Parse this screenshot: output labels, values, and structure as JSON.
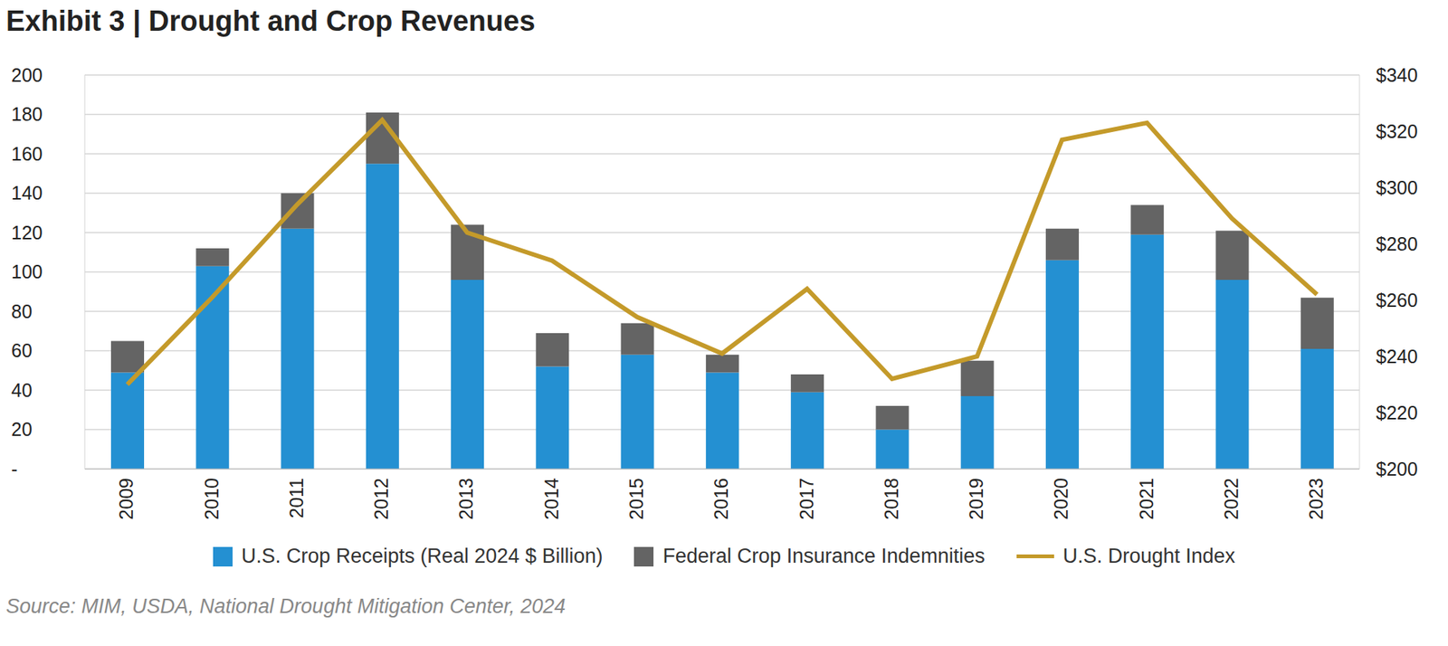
{
  "chart_data": {
    "type": "bar",
    "title": "Exhibit 3 | Drought and Crop Revenues",
    "source": "Source: MIM, USDA, National Drought Mitigation Center, 2024",
    "categories": [
      "2009",
      "2010",
      "2011",
      "2012",
      "2013",
      "2014",
      "2015",
      "2016",
      "2017",
      "2018",
      "2019",
      "2020",
      "2021",
      "2022",
      "2023"
    ],
    "series": [
      {
        "name": "U.S. Crop Receipts (Real 2024 $ Billion)",
        "type": "bar",
        "color": "#2490d2",
        "values": [
          49,
          103,
          122,
          155,
          96,
          52,
          58,
          49,
          39,
          20,
          37,
          106,
          119,
          96,
          61
        ]
      },
      {
        "name": "Federal Crop Insurance Indemnities",
        "type": "bar",
        "color": "#646464",
        "values": [
          16,
          9,
          18,
          26,
          28,
          17,
          16,
          9,
          9,
          12,
          18,
          16,
          15,
          25,
          26
        ]
      },
      {
        "name": "U.S. Drought Index",
        "type": "line",
        "axis": "y2",
        "color": "#c49a2a",
        "values": [
          230,
          261,
          294,
          324,
          284,
          274,
          254,
          241,
          264,
          232,
          240,
          317,
          323,
          289,
          262
        ]
      }
    ],
    "stacked": true,
    "ylim": [
      0,
      200
    ],
    "yticks": [
      {
        "value": 0,
        "label": "-"
      },
      20,
      40,
      60,
      80,
      100,
      120,
      140,
      160,
      180,
      200
    ],
    "y2lim": [
      200,
      340
    ],
    "y2ticks": [
      {
        "value": 200,
        "label": "$200"
      },
      {
        "value": 220,
        "label": "$220"
      },
      {
        "value": 240,
        "label": "$240"
      },
      {
        "value": 260,
        "label": "$260"
      },
      {
        "value": 280,
        "label": "$280"
      },
      {
        "value": 300,
        "label": "$300"
      },
      {
        "value": 320,
        "label": "$320"
      },
      {
        "value": 340,
        "label": "$340"
      }
    ],
    "grid": true,
    "legend": "bottom"
  }
}
